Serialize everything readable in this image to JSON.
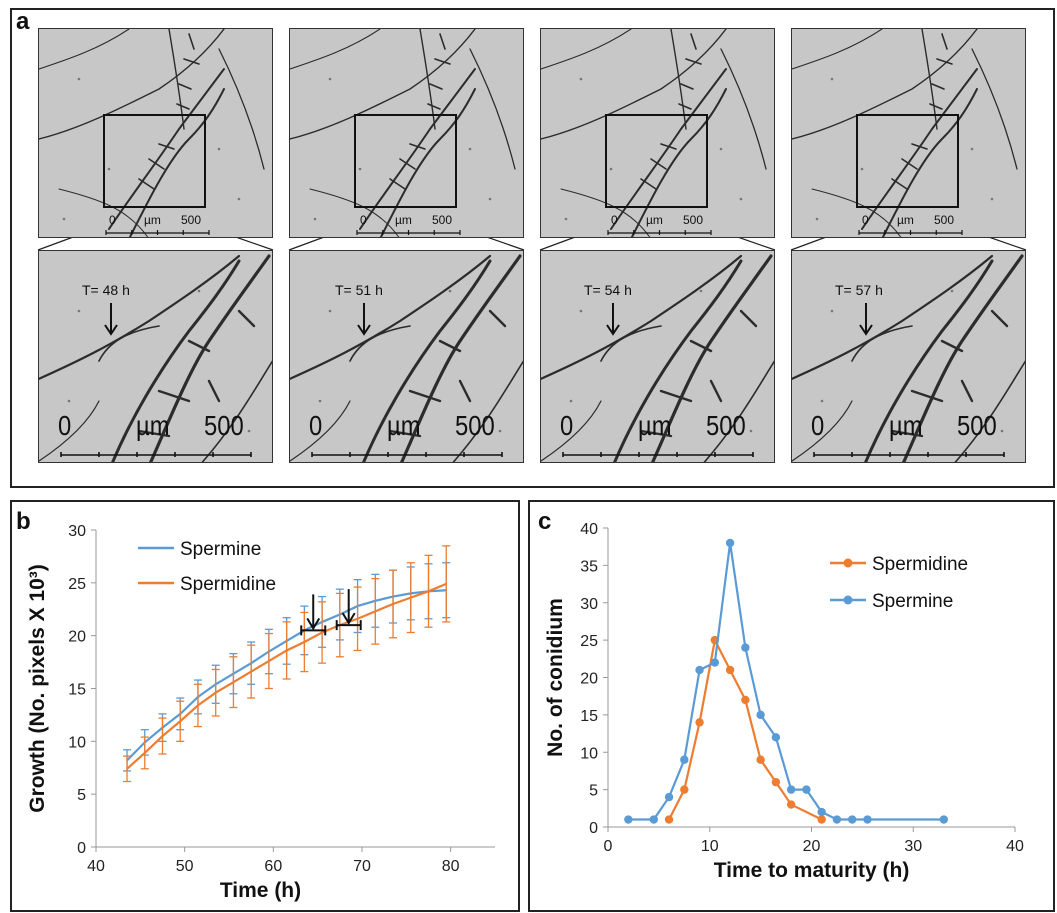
{
  "panels": {
    "a": {
      "letter": "a",
      "scale_small": {
        "zero": "0",
        "unit": "µm",
        "max": "500"
      },
      "scale_large": {
        "zero": "0",
        "unit": "µm",
        "max": "500"
      },
      "frames": [
        {
          "time_label": "T= 48 h"
        },
        {
          "time_label": "T= 51 h"
        },
        {
          "time_label": "T= 54 h"
        },
        {
          "time_label": "T= 57 h"
        }
      ]
    },
    "b": {
      "letter": "b"
    },
    "c": {
      "letter": "c"
    }
  },
  "colors": {
    "spermine": "#5b9bd5",
    "spermidine": "#ed7d31"
  },
  "chart_data": [
    {
      "panel": "b",
      "type": "line",
      "xlabel": "Time (h)",
      "ylabel": "Growth (No. pixels X 10³)",
      "xlim": [
        40,
        85
      ],
      "ylim": [
        0,
        30
      ],
      "xticks": [
        40,
        50,
        60,
        70,
        80
      ],
      "yticks": [
        0,
        5,
        10,
        15,
        20,
        25,
        30
      ],
      "legend_position": "top-left",
      "error_bars": true,
      "annotations": [
        {
          "type": "arrow",
          "x": 64.5,
          "y": 20.5
        },
        {
          "type": "arrow",
          "x": 68.5,
          "y": 21.0
        }
      ],
      "series": [
        {
          "name": "Spermine",
          "color": "#5b9bd5",
          "x": [
            43.5,
            45.5,
            47.5,
            49.5,
            51.5,
            53.5,
            55.5,
            57.5,
            59.5,
            61.5,
            63.5,
            65.5,
            67.5,
            69.5,
            71.5,
            73.5,
            75.5,
            77.5,
            79.5
          ],
          "y": [
            8.2,
            9.9,
            11.3,
            12.6,
            14.2,
            15.4,
            16.4,
            17.4,
            18.5,
            19.5,
            20.5,
            21.3,
            22.0,
            22.8,
            23.3,
            23.7,
            24.0,
            24.2,
            24.3
          ],
          "err": [
            1.0,
            1.2,
            1.3,
            1.5,
            1.6,
            1.8,
            1.9,
            2.0,
            2.1,
            2.2,
            2.3,
            2.4,
            2.4,
            2.5,
            2.5,
            2.5,
            2.5,
            2.6,
            2.6
          ]
        },
        {
          "name": "Spermidine",
          "color": "#ed7d31",
          "x": [
            43.5,
            45.5,
            47.5,
            49.5,
            51.5,
            53.5,
            55.5,
            57.5,
            59.5,
            61.5,
            63.5,
            65.5,
            67.5,
            69.5,
            71.5,
            73.5,
            75.5,
            77.5,
            79.5
          ],
          "y": [
            7.4,
            8.9,
            10.5,
            11.9,
            13.4,
            14.6,
            15.6,
            16.6,
            17.6,
            18.6,
            19.4,
            20.3,
            21.0,
            21.6,
            22.3,
            23.0,
            23.6,
            24.2,
            24.9
          ],
          "err": [
            1.2,
            1.5,
            1.7,
            1.9,
            2.0,
            2.2,
            2.4,
            2.5,
            2.6,
            2.7,
            2.8,
            2.9,
            3.0,
            3.0,
            3.1,
            3.2,
            3.3,
            3.4,
            3.6
          ]
        }
      ]
    },
    {
      "panel": "c",
      "type": "line",
      "xlabel": "Time to maturity (h)",
      "ylabel": "No. of conidium",
      "xlim": [
        0,
        40
      ],
      "ylim": [
        0,
        40
      ],
      "xticks": [
        0,
        10,
        20,
        30,
        40
      ],
      "yticks": [
        0,
        5,
        10,
        15,
        20,
        25,
        30,
        35,
        40
      ],
      "legend_position": "top-right",
      "series": [
        {
          "name": "Spermidine",
          "color": "#ed7d31",
          "x": [
            6,
            7.5,
            9,
            10.5,
            12,
            13.5,
            15,
            16.5,
            18,
            21
          ],
          "y": [
            1,
            5,
            14,
            25,
            21,
            17,
            9,
            6,
            3,
            1
          ]
        },
        {
          "name": "Spermine",
          "color": "#5b9bd5",
          "x": [
            2,
            4.5,
            6,
            7.5,
            9,
            10.5,
            12,
            13.5,
            15,
            16.5,
            18,
            19.5,
            21,
            22.5,
            24,
            25.5,
            33
          ],
          "y": [
            1,
            1,
            4,
            9,
            21,
            22,
            38,
            24,
            15,
            12,
            5,
            5,
            2,
            1,
            1,
            1,
            1
          ]
        }
      ]
    }
  ]
}
